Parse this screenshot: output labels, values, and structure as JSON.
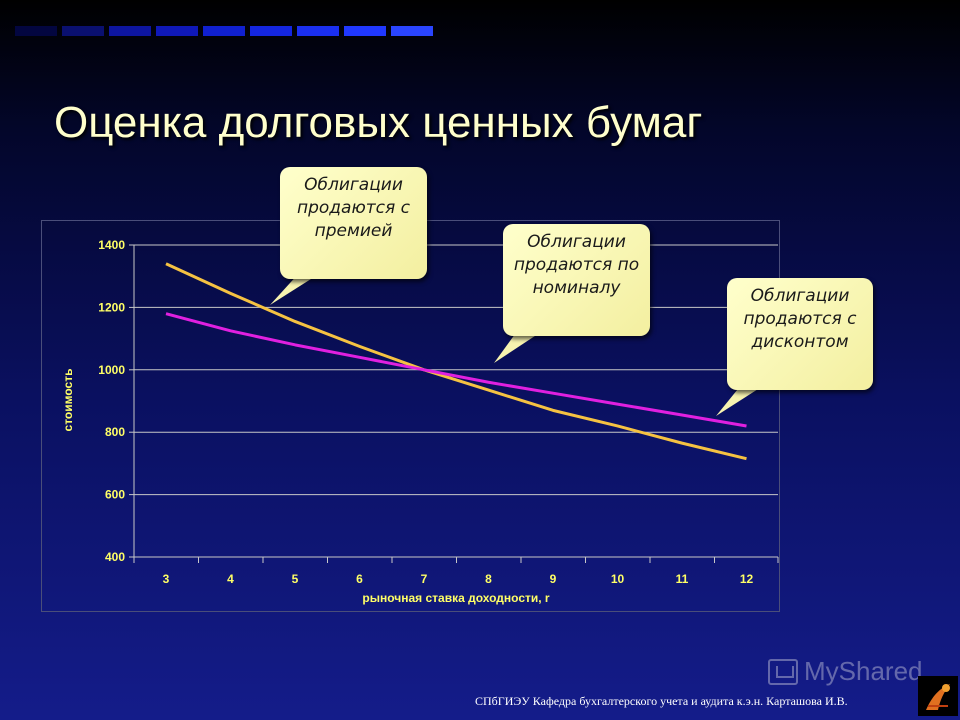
{
  "slide": {
    "title": "Оценка долговых ценных бумаг",
    "footer": "СПбГИЭУ Кафедра бухгалтерского учета и аудита   к.э.н. Карташова И.В.",
    "watermark": "MyShared",
    "top_bar_colors": [
      "#030640",
      "#0a1070",
      "#0d15a0",
      "#0f18b8",
      "#1020d0",
      "#1426e0",
      "#1a2ff0",
      "#2038ff",
      "#2a45ff"
    ]
  },
  "callouts": {
    "premium": "Облигации продаются с премией",
    "par": "Облигации продаются по номиналу",
    "discount": "Облигации продаются с дисконтом"
  },
  "chart_data": {
    "type": "line",
    "xlabel": "рыночная ставка доходности, r",
    "ylabel": "стоимость",
    "x": [
      3,
      4,
      5,
      6,
      7,
      8,
      9,
      10,
      11,
      12
    ],
    "ylim": [
      400,
      1400
    ],
    "yticks": [
      400,
      600,
      800,
      1000,
      1200,
      1400
    ],
    "grid": true,
    "series": [
      {
        "color": "#f5c242",
        "values": [
          1340,
          1245,
          1155,
          1075,
          1000,
          935,
          870,
          820,
          765,
          715
        ]
      },
      {
        "color": "#e020e0",
        "values": [
          1180,
          1125,
          1080,
          1040,
          1000,
          960,
          925,
          890,
          855,
          820
        ]
      }
    ]
  }
}
